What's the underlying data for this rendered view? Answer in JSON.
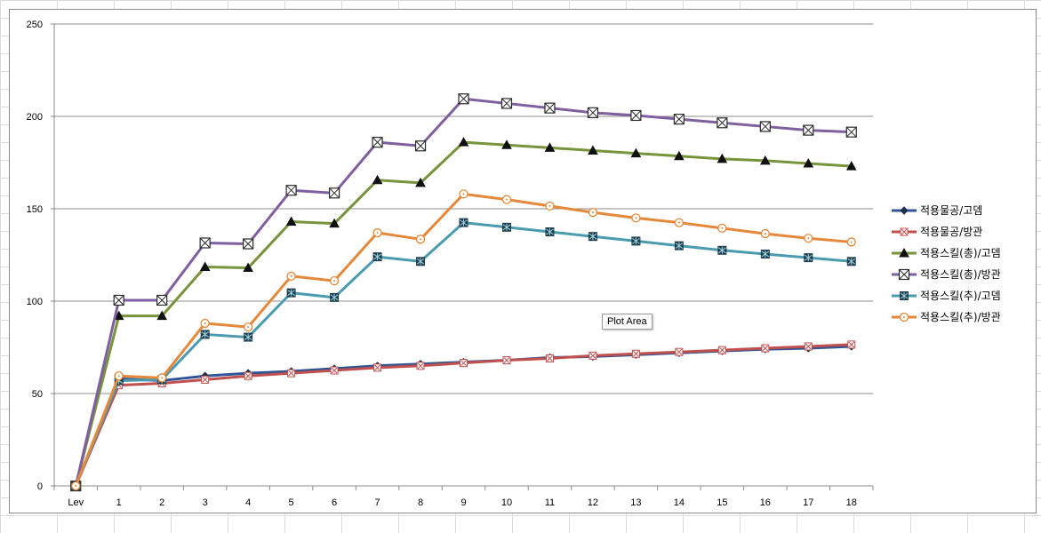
{
  "chart_data": {
    "type": "line",
    "title": "",
    "xlabel": "",
    "ylabel": "",
    "categories": [
      "Lev",
      "1",
      "2",
      "3",
      "4",
      "5",
      "6",
      "7",
      "8",
      "9",
      "10",
      "11",
      "12",
      "13",
      "14",
      "15",
      "16",
      "17",
      "18"
    ],
    "ylim": [
      0,
      250
    ],
    "yticks": [
      0,
      50,
      100,
      150,
      200,
      250
    ],
    "grid": true,
    "legend_position": "right",
    "series": [
      {
        "name": "적용물공/고뎀",
        "color": "#2f5597",
        "marker": "diamond",
        "values": [
          0,
          58,
          57,
          59.5,
          61,
          62,
          63.5,
          65,
          66,
          67,
          68,
          69.5,
          70,
          71,
          72,
          73,
          74,
          74.5,
          75.5
        ]
      },
      {
        "name": "적용물공/방관",
        "color": "#c0504d",
        "marker": "square-x",
        "values": [
          0,
          54.5,
          55.5,
          57.5,
          59.5,
          61,
          62.5,
          64,
          65,
          66.5,
          68,
          69,
          70.5,
          71.5,
          72.5,
          73.5,
          74.5,
          75.5,
          76.5
        ]
      },
      {
        "name": "적용스킬(총)/고뎀",
        "color": "#77933c",
        "marker": "triangle",
        "values": [
          0,
          92,
          92,
          118.5,
          118,
          143,
          142,
          165.5,
          164,
          186,
          184.5,
          183,
          181.5,
          180,
          178.5,
          177,
          176,
          174.5,
          173
        ]
      },
      {
        "name": "적용스킬(총)/방관",
        "color": "#7f5f9f",
        "marker": "square-x-large",
        "values": [
          0,
          100.5,
          100.5,
          131.5,
          131,
          160,
          158.5,
          186,
          184,
          209.5,
          207,
          204.5,
          202,
          200.5,
          198.5,
          196.5,
          194.5,
          192.5,
          191.5
        ]
      },
      {
        "name": "적용스킬(추)/고뎀",
        "color": "#4a9bb0",
        "marker": "square-star",
        "values": [
          0,
          57,
          57.5,
          82,
          80.5,
          104.5,
          102,
          124,
          121.5,
          142.5,
          140,
          137.5,
          135,
          132.5,
          130,
          127.5,
          125.5,
          123.5,
          121.5
        ]
      },
      {
        "name": "적용스킬(추)/방관",
        "color": "#e6883a",
        "marker": "circle",
        "values": [
          0,
          59.5,
          58.5,
          88,
          86,
          113.5,
          111,
          137,
          133.5,
          158,
          155,
          151.5,
          148,
          145,
          142.5,
          139.5,
          136.5,
          134,
          132
        ]
      }
    ]
  },
  "tooltip": {
    "text": "Plot Area"
  }
}
